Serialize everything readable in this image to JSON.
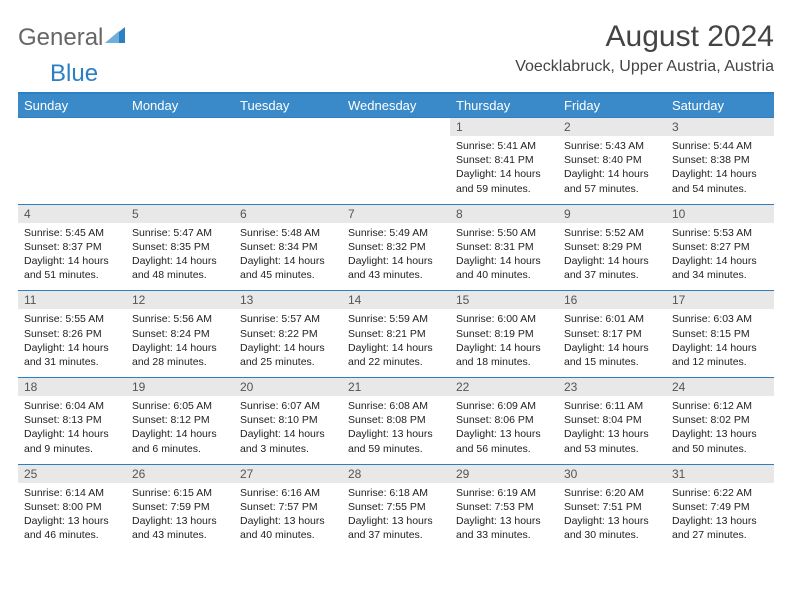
{
  "logo": {
    "text1": "General",
    "text2": "Blue"
  },
  "title": "August 2024",
  "location": "Voecklabruck, Upper Austria, Austria",
  "colors": {
    "accent": "#2d7fc4",
    "header_bg": "#3a8ac9",
    "daynum_bg": "#e8e8e8",
    "text": "#222222"
  },
  "dayHeaders": [
    "Sunday",
    "Monday",
    "Tuesday",
    "Wednesday",
    "Thursday",
    "Friday",
    "Saturday"
  ],
  "weeks": [
    [
      {
        "empty": true
      },
      {
        "empty": true
      },
      {
        "empty": true
      },
      {
        "empty": true
      },
      {
        "n": "1",
        "sr": "5:41 AM",
        "ss": "8:41 PM",
        "dl": "14 hours and 59 minutes."
      },
      {
        "n": "2",
        "sr": "5:43 AM",
        "ss": "8:40 PM",
        "dl": "14 hours and 57 minutes."
      },
      {
        "n": "3",
        "sr": "5:44 AM",
        "ss": "8:38 PM",
        "dl": "14 hours and 54 minutes."
      }
    ],
    [
      {
        "n": "4",
        "sr": "5:45 AM",
        "ss": "8:37 PM",
        "dl": "14 hours and 51 minutes."
      },
      {
        "n": "5",
        "sr": "5:47 AM",
        "ss": "8:35 PM",
        "dl": "14 hours and 48 minutes."
      },
      {
        "n": "6",
        "sr": "5:48 AM",
        "ss": "8:34 PM",
        "dl": "14 hours and 45 minutes."
      },
      {
        "n": "7",
        "sr": "5:49 AM",
        "ss": "8:32 PM",
        "dl": "14 hours and 43 minutes."
      },
      {
        "n": "8",
        "sr": "5:50 AM",
        "ss": "8:31 PM",
        "dl": "14 hours and 40 minutes."
      },
      {
        "n": "9",
        "sr": "5:52 AM",
        "ss": "8:29 PM",
        "dl": "14 hours and 37 minutes."
      },
      {
        "n": "10",
        "sr": "5:53 AM",
        "ss": "8:27 PM",
        "dl": "14 hours and 34 minutes."
      }
    ],
    [
      {
        "n": "11",
        "sr": "5:55 AM",
        "ss": "8:26 PM",
        "dl": "14 hours and 31 minutes."
      },
      {
        "n": "12",
        "sr": "5:56 AM",
        "ss": "8:24 PM",
        "dl": "14 hours and 28 minutes."
      },
      {
        "n": "13",
        "sr": "5:57 AM",
        "ss": "8:22 PM",
        "dl": "14 hours and 25 minutes."
      },
      {
        "n": "14",
        "sr": "5:59 AM",
        "ss": "8:21 PM",
        "dl": "14 hours and 22 minutes."
      },
      {
        "n": "15",
        "sr": "6:00 AM",
        "ss": "8:19 PM",
        "dl": "14 hours and 18 minutes."
      },
      {
        "n": "16",
        "sr": "6:01 AM",
        "ss": "8:17 PM",
        "dl": "14 hours and 15 minutes."
      },
      {
        "n": "17",
        "sr": "6:03 AM",
        "ss": "8:15 PM",
        "dl": "14 hours and 12 minutes."
      }
    ],
    [
      {
        "n": "18",
        "sr": "6:04 AM",
        "ss": "8:13 PM",
        "dl": "14 hours and 9 minutes."
      },
      {
        "n": "19",
        "sr": "6:05 AM",
        "ss": "8:12 PM",
        "dl": "14 hours and 6 minutes."
      },
      {
        "n": "20",
        "sr": "6:07 AM",
        "ss": "8:10 PM",
        "dl": "14 hours and 3 minutes."
      },
      {
        "n": "21",
        "sr": "6:08 AM",
        "ss": "8:08 PM",
        "dl": "13 hours and 59 minutes."
      },
      {
        "n": "22",
        "sr": "6:09 AM",
        "ss": "8:06 PM",
        "dl": "13 hours and 56 minutes."
      },
      {
        "n": "23",
        "sr": "6:11 AM",
        "ss": "8:04 PM",
        "dl": "13 hours and 53 minutes."
      },
      {
        "n": "24",
        "sr": "6:12 AM",
        "ss": "8:02 PM",
        "dl": "13 hours and 50 minutes."
      }
    ],
    [
      {
        "n": "25",
        "sr": "6:14 AM",
        "ss": "8:00 PM",
        "dl": "13 hours and 46 minutes."
      },
      {
        "n": "26",
        "sr": "6:15 AM",
        "ss": "7:59 PM",
        "dl": "13 hours and 43 minutes."
      },
      {
        "n": "27",
        "sr": "6:16 AM",
        "ss": "7:57 PM",
        "dl": "13 hours and 40 minutes."
      },
      {
        "n": "28",
        "sr": "6:18 AM",
        "ss": "7:55 PM",
        "dl": "13 hours and 37 minutes."
      },
      {
        "n": "29",
        "sr": "6:19 AM",
        "ss": "7:53 PM",
        "dl": "13 hours and 33 minutes."
      },
      {
        "n": "30",
        "sr": "6:20 AM",
        "ss": "7:51 PM",
        "dl": "13 hours and 30 minutes."
      },
      {
        "n": "31",
        "sr": "6:22 AM",
        "ss": "7:49 PM",
        "dl": "13 hours and 27 minutes."
      }
    ]
  ],
  "labels": {
    "sunrise": "Sunrise:",
    "sunset": "Sunset:",
    "daylight": "Daylight:"
  }
}
